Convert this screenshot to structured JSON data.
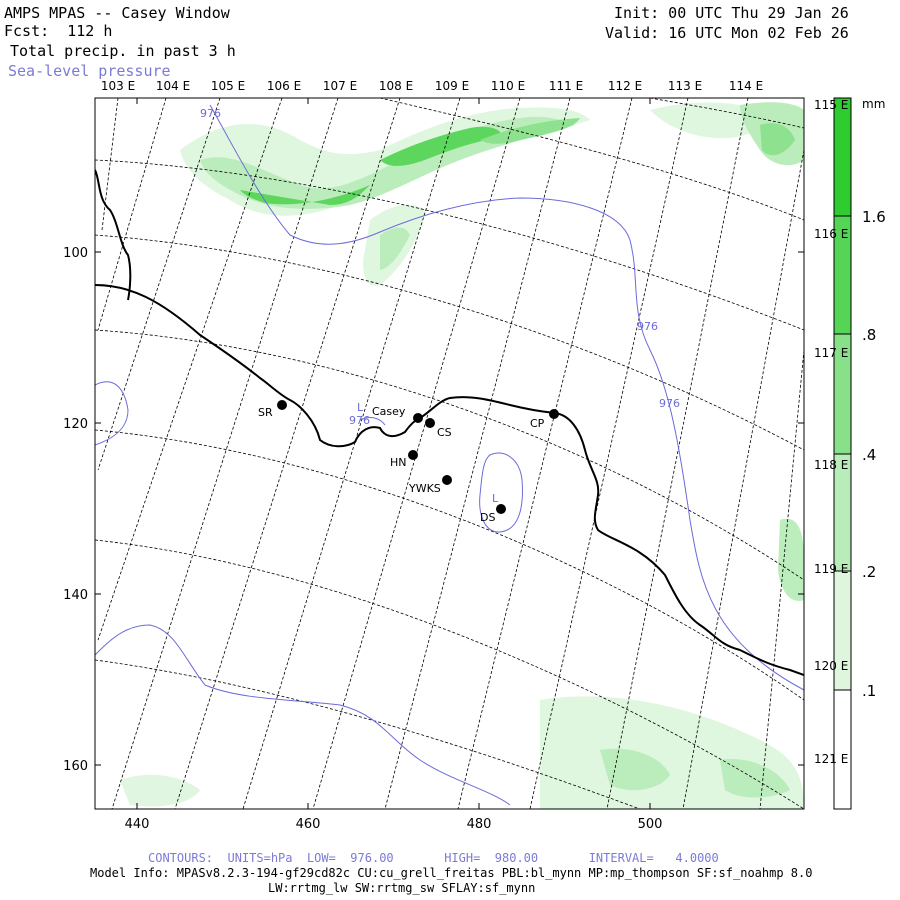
{
  "header": {
    "title": "AMPS MPAS -- Casey Window",
    "forecast": "Fcst:  112 h",
    "field": "Total precip. in past 3 h",
    "contour_field": "Sea-level pressure",
    "init": "Init: 00 UTC Thu 29 Jan 26",
    "valid": "Valid: 16 UTC Mon 02 Feb 26"
  },
  "axes": {
    "x_ticks": [
      "440",
      "460",
      "480",
      "500"
    ],
    "y_ticks": [
      "100",
      "120",
      "140",
      "160"
    ],
    "lon_top": [
      "103 E",
      "104 E",
      "105 E",
      "106 E",
      "107 E",
      "108 E",
      "109 E",
      "110 E",
      "111 E",
      "112 E",
      "113 E",
      "114 E"
    ],
    "lat_right": [
      "115 E",
      "116 E",
      "117 E",
      "118 E",
      "119 E",
      "120 E",
      "121 E"
    ]
  },
  "colorbar": {
    "unit": "mm",
    "labels": [
      "1.6",
      ".8",
      ".4",
      ".2",
      ".1"
    ],
    "colors": [
      "#2ecc2e",
      "#55d455",
      "#88e088",
      "#b8ecb8",
      "#def6de",
      "#ffffff"
    ]
  },
  "stations": [
    {
      "label": "SR"
    },
    {
      "label": "Casey"
    },
    {
      "label": "CS"
    },
    {
      "label": "HN"
    },
    {
      "label": "YWKS"
    },
    {
      "label": "CP"
    },
    {
      "label": "DS"
    }
  ],
  "contours": {
    "labels": [
      "976",
      "976",
      "976",
      "976"
    ],
    "lows": [
      "L",
      "L"
    ]
  },
  "footer": {
    "contours_line": "CONTOURS:  UNITS=hPa  LOW=  976.00       HIGH=  980.00       INTERVAL=   4.0000",
    "model_info": "Model Info: MPASv8.2.3-194-gf29cd82c CU:cu_grell_freitas PBL:bl_mynn MP:mp_thompson SF:sf_noahmp 8.0",
    "model_info2": "LW:rrtmg_lw SW:rrtmg_sw SFLAY:sf_mynn"
  }
}
